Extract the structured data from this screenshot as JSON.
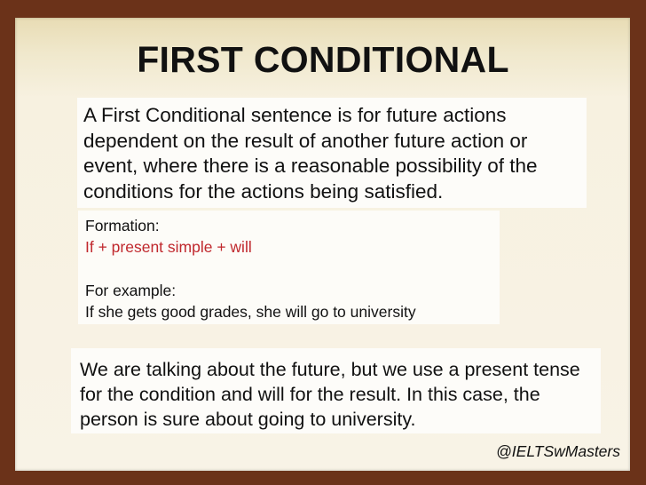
{
  "title": "FIRST CONDITIONAL",
  "definition": "A First Conditional sentence is for future actions dependent on the result of another future action or event, where there is a reasonable possibility of the conditions for the actions being satisfied.",
  "formation": {
    "label": "Formation:",
    "rule": "If + present simple + will"
  },
  "example": {
    "label": "For example:",
    "sentence": "If she gets good grades, she will go to university"
  },
  "explanation": "We are talking about the future, but we use a present tense for the condition and will for the result. In this case, the person is sure about going to university.",
  "credit": "@IELTSwMasters",
  "colors": {
    "frame": "#6b3219",
    "rule_text": "#c0282d"
  }
}
